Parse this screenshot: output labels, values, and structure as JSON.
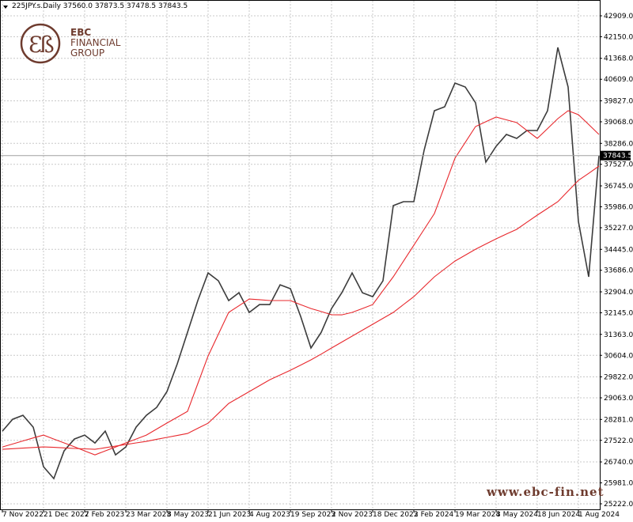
{
  "chart_data": {
    "type": "line",
    "title": "225JPY.s.Daily  37560.0 37873.5 37478.5 37843.5",
    "brand": [
      "EBC",
      "FINANCIAL",
      "GROUP"
    ],
    "website": "www.ebc-fin.net",
    "last_price": 37843.5,
    "categories": [
      "7 Nov 2022",
      null,
      null,
      null,
      "21 Dec 2022",
      null,
      null,
      null,
      "7 Feb 2023",
      null,
      null,
      null,
      "23 Mar 2023",
      null,
      null,
      null,
      "8 May 2023",
      null,
      null,
      null,
      "21 Jun 2023",
      null,
      null,
      null,
      "4 Aug 2023",
      null,
      null,
      null,
      "19 Sep 2023",
      null,
      null,
      null,
      "2 Nov 2023",
      null,
      null,
      null,
      "18 Dec 2023",
      null,
      null,
      null,
      "2 Feb 2024",
      null,
      null,
      null,
      "19 Mar 2024",
      null,
      null,
      null,
      "3 May 2024",
      null,
      null,
      null,
      "18 Jun 2024",
      null,
      null,
      null,
      "1 Aug 2024",
      null,
      null
    ],
    "series": [
      {
        "color": "#3c3c3c",
        "values": [
          27857,
          28287,
          28431,
          28001,
          26567,
          26137,
          27140,
          27571,
          27714,
          27427,
          27857,
          26997,
          27284,
          28001,
          28431,
          28717,
          29291,
          30294,
          31441,
          32588,
          33591,
          33305,
          32588,
          32874,
          32158,
          32444,
          32444,
          33161,
          33018,
          32014,
          30868,
          31441,
          32301,
          32874,
          33591,
          32874,
          32731,
          33305,
          36028,
          36172,
          36172,
          38035,
          39469,
          39612,
          40472,
          40329,
          39755,
          37605,
          38178,
          38608,
          38465,
          38752,
          38752,
          39469,
          41762,
          40329,
          35455,
          33448,
          37843.5
        ]
      },
      {
        "color": "#e8282d",
        "values": [
          27284,
          27390,
          27500,
          27610,
          27714,
          27570,
          27430,
          27290,
          27140,
          26997,
          27140,
          27280,
          27430,
          27570,
          27714,
          27930,
          28150,
          28360,
          28574,
          29580,
          30581,
          31370,
          32158,
          32400,
          32645,
          32620,
          32588,
          32590,
          32588,
          32440,
          32301,
          32190,
          32072,
          32070,
          32158,
          32300,
          32444,
          32950,
          33448,
          34020,
          34594,
          35170,
          35741,
          36740,
          37748,
          38320,
          38895,
          39070,
          39239,
          39140,
          39038,
          38750,
          38465,
          38820,
          39182,
          39469,
          39325,
          38970,
          38608
        ]
      },
      {
        "color": "#e8282d",
        "values": [
          27198,
          27220,
          27240,
          27262,
          27284,
          27270,
          27250,
          27230,
          27215,
          27198,
          27255,
          27315,
          27370,
          27430,
          27485,
          27560,
          27630,
          27700,
          27772,
          27960,
          28144,
          28500,
          28861,
          29076,
          29291,
          29506,
          29721,
          29893,
          30065,
          30250,
          30438,
          30650,
          30868,
          31083,
          31298,
          31513,
          31728,
          31943,
          32158,
          32445,
          32731,
          33090,
          33448,
          33735,
          34021,
          34236,
          34451,
          34640,
          34824,
          35000,
          35168,
          35430,
          35685,
          35930,
          36172,
          36560,
          36946,
          37200,
          37462
        ]
      }
    ],
    "ylim": [
      24993,
      43138
    ],
    "yticks": [
      {
        "value": 42909,
        "label": "42909.0"
      },
      {
        "value": 42150,
        "label": "42150.0"
      },
      {
        "value": 41368,
        "label": "41368.0"
      },
      {
        "value": 40609,
        "label": "40609.0"
      },
      {
        "value": 39827,
        "label": "39827.0"
      },
      {
        "value": 39068,
        "label": "39068.0"
      },
      {
        "value": 38286,
        "label": "38286.0"
      },
      {
        "value": 37527,
        "label": "37527.0"
      },
      {
        "value": 36745,
        "label": "36745.0"
      },
      {
        "value": 35986,
        "label": "35986.0"
      },
      {
        "value": 35227,
        "label": "35227.0"
      },
      {
        "value": 34445,
        "label": "34445.0"
      },
      {
        "value": 33686,
        "label": "33686.0"
      },
      {
        "value": 32904,
        "label": "32904.0"
      },
      {
        "value": 32145,
        "label": "32145.0"
      },
      {
        "value": 31363,
        "label": "31363.0"
      },
      {
        "value": 30604,
        "label": "30604.0"
      },
      {
        "value": 29822,
        "label": "29822.0"
      },
      {
        "value": 29063,
        "label": "29063.0"
      },
      {
        "value": 28281,
        "label": "28281.0"
      },
      {
        "value": 27522,
        "label": "27522.0"
      },
      {
        "value": 26740,
        "label": "26740.0"
      },
      {
        "value": 25981,
        "label": "25981.0"
      },
      {
        "value": 25222,
        "label": "25222.0"
      }
    ],
    "grid": true
  }
}
